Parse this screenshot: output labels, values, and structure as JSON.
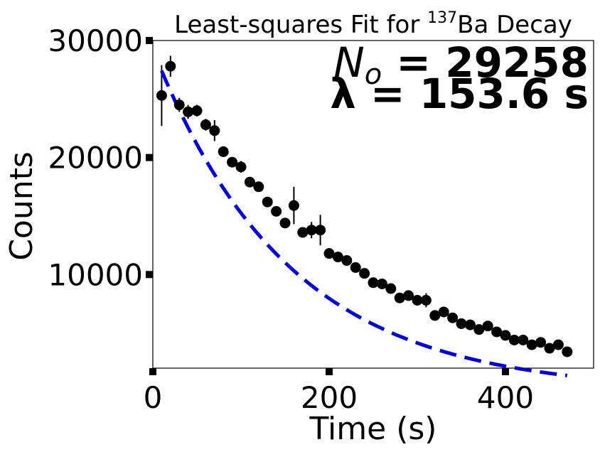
{
  "chart_data": {
    "type": "scatter",
    "title_prefix": "Least-squares Fit for ",
    "title_sup": "137",
    "title_suffix": "Ba Decay",
    "xlabel": "Time (s)",
    "ylabel": "Counts",
    "xlim": [
      0,
      500
    ],
    "ylim": [
      2000,
      30000
    ],
    "xticks": [
      "0",
      "200",
      "400"
    ],
    "xtick_values": [
      0,
      200,
      400
    ],
    "yticks": [
      "10000",
      "20000",
      "30000"
    ],
    "ytick_values": [
      10000,
      20000,
      30000
    ],
    "grid": false,
    "annotation_n_symbol": "N",
    "annotation_n_sub": "o",
    "annotation_n_value": " = 29258",
    "annotation_lambda": "λ = 153.6 s",
    "fit": {
      "N0": 29258,
      "tau": 153.6,
      "x_start": 10,
      "x_end": 470,
      "color": "#0000dd"
    },
    "points_color": "#000000",
    "x": [
      10,
      20,
      30,
      40,
      50,
      60,
      70,
      80,
      90,
      100,
      110,
      120,
      130,
      140,
      150,
      160,
      170,
      180,
      190,
      200,
      210,
      220,
      230,
      240,
      250,
      260,
      270,
      280,
      290,
      300,
      310,
      320,
      330,
      340,
      350,
      360,
      370,
      380,
      390,
      400,
      410,
      420,
      430,
      440,
      450,
      460,
      470
    ],
    "y": [
      25300,
      27800,
      24500,
      23900,
      24000,
      22800,
      22300,
      20500,
      19600,
      19200,
      17900,
      17500,
      16200,
      15400,
      14400,
      15900,
      13600,
      13800,
      13800,
      11800,
      11500,
      11200,
      10600,
      10100,
      9300,
      9200,
      8800,
      8000,
      8200,
      7800,
      7800,
      6500,
      6800,
      6300,
      5800,
      5700,
      5300,
      5600,
      5100,
      4800,
      4400,
      4400,
      4000,
      4200,
      3700,
      4000,
      3400
    ],
    "yerr": [
      2600,
      900,
      600,
      600,
      500,
      500,
      900,
      400,
      400,
      500,
      300,
      300,
      400,
      400,
      400,
      1600,
      400,
      700,
      1300,
      300,
      300,
      300,
      300,
      300,
      300,
      300,
      300,
      300,
      300,
      400,
      600,
      300,
      300,
      300,
      300,
      300,
      300,
      300,
      300,
      300,
      300,
      300,
      300,
      300,
      300,
      300,
      300
    ]
  }
}
